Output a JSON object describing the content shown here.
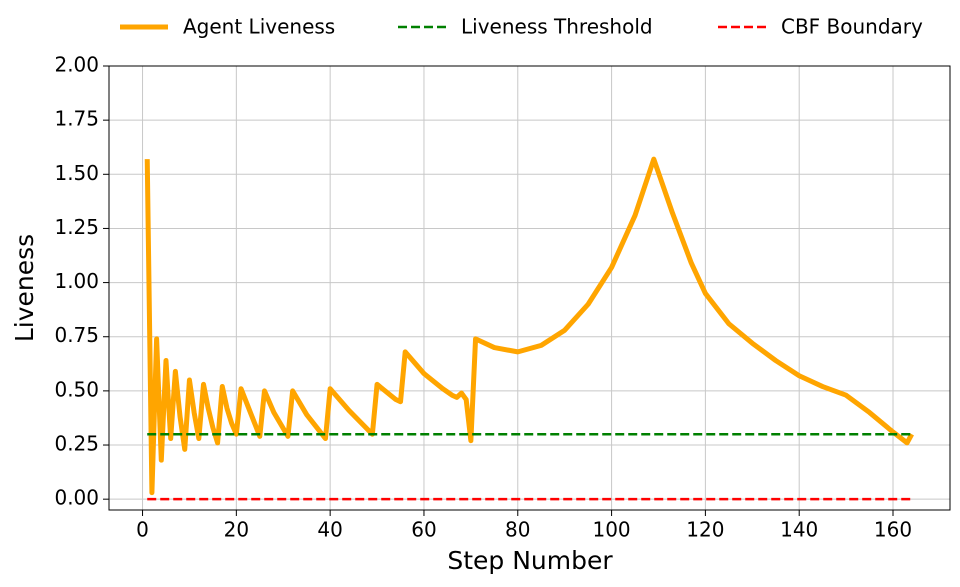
{
  "chart_data": {
    "type": "line",
    "xlabel": "Step Number",
    "ylabel": "Liveness",
    "series": [
      {
        "name": "Agent Liveness",
        "color": "#ffa500",
        "style": "solid",
        "width": 5,
        "x": [
          1,
          2,
          3,
          4,
          5,
          6,
          7,
          8,
          9,
          10,
          11,
          12,
          13,
          14,
          15,
          16,
          17,
          18,
          19,
          20,
          21,
          23,
          25,
          26,
          28,
          31,
          32,
          35,
          39,
          40,
          44,
          49,
          50,
          54,
          55,
          56,
          60,
          64,
          66,
          67,
          68,
          69,
          70,
          71,
          75,
          80,
          85,
          90,
          95,
          100,
          105,
          109,
          113,
          117,
          120,
          125,
          130,
          135,
          140,
          145,
          150,
          155,
          160,
          163,
          164
        ],
        "values": [
          1.57,
          0.03,
          0.74,
          0.18,
          0.64,
          0.28,
          0.59,
          0.38,
          0.23,
          0.55,
          0.4,
          0.28,
          0.53,
          0.42,
          0.33,
          0.26,
          0.52,
          0.42,
          0.35,
          0.3,
          0.51,
          0.4,
          0.29,
          0.5,
          0.4,
          0.29,
          0.5,
          0.39,
          0.28,
          0.51,
          0.41,
          0.3,
          0.53,
          0.46,
          0.45,
          0.68,
          0.58,
          0.51,
          0.48,
          0.47,
          0.49,
          0.46,
          0.27,
          0.74,
          0.7,
          0.68,
          0.71,
          0.78,
          0.9,
          1.07,
          1.31,
          1.57,
          1.32,
          1.09,
          0.95,
          0.81,
          0.72,
          0.64,
          0.57,
          0.52,
          0.48,
          0.4,
          0.31,
          0.26,
          0.3
        ]
      },
      {
        "name": "Liveness Threshold",
        "color": "#008000",
        "style": "dashed",
        "width": 2.5,
        "x": [
          1,
          164
        ],
        "values": [
          0.3,
          0.3
        ]
      },
      {
        "name": "CBF Boundary",
        "color": "#ff0000",
        "style": "dashed",
        "width": 2.5,
        "x": [
          1,
          164
        ],
        "values": [
          0,
          0
        ]
      }
    ],
    "xlim": [
      -7.15,
      172.15
    ],
    "xticks": [
      0,
      20,
      40,
      60,
      80,
      100,
      120,
      140,
      160
    ],
    "ylim": [
      -0.05,
      2.0
    ],
    "yticks": [
      {
        "value": 0,
        "label": "0.00"
      },
      {
        "value": 0.25,
        "label": "0.25"
      },
      {
        "value": 0.5,
        "label": "0.50"
      },
      {
        "value": 0.75,
        "label": "0.75"
      },
      {
        "value": 1,
        "label": "1.00"
      },
      {
        "value": 1.25,
        "label": "1.25"
      },
      {
        "value": 1.5,
        "label": "1.50"
      },
      {
        "value": 1.75,
        "label": "1.75"
      },
      {
        "value": 2,
        "label": "2.00"
      }
    ],
    "grid": true,
    "legend": "top"
  }
}
